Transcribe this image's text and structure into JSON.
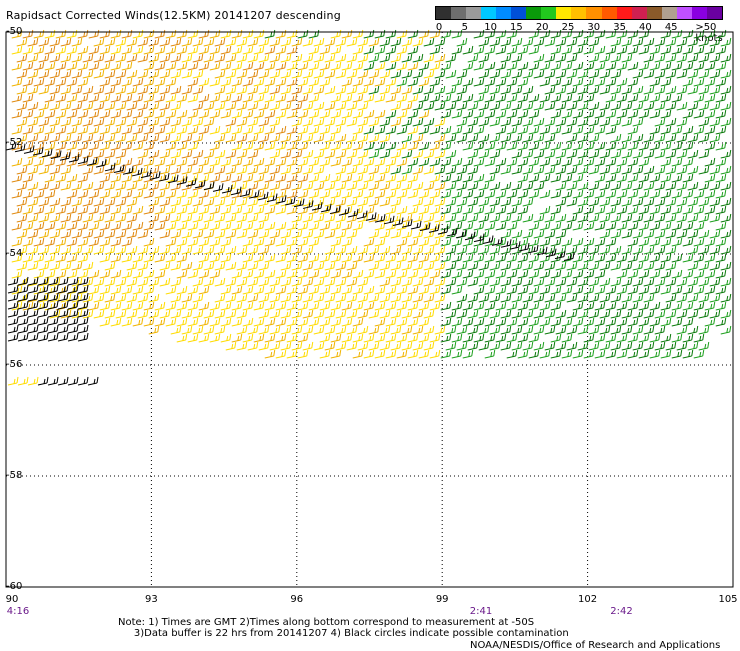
{
  "title": "Rapidsact Corrected Winds(12.5KM) 20141207 descending",
  "legend": {
    "labels": [
      "0",
      "5",
      "10",
      "15",
      "20",
      "25",
      "30",
      "35",
      "40",
      "45",
      ">50 knots"
    ],
    "colors": [
      "#303030",
      "#6e6e6e",
      "#9a9a9a",
      "#00c8ff",
      "#008cff",
      "#0050d8",
      "#0a9a0a",
      "#22c81e",
      "#ffe800",
      "#ffc000",
      "#ff9000",
      "#ff5a00",
      "#ff1a1a",
      "#d02050",
      "#8a5a2a",
      "#b0a090",
      "#c050ff",
      "#8a00e0",
      "#6a00a0"
    ]
  },
  "axes": {
    "lat_labels": [
      "-50",
      "-52",
      "-54",
      "-56",
      "-58",
      "-60"
    ],
    "lon_labels": [
      "90",
      "93",
      "96",
      "99",
      "102",
      "105"
    ],
    "time_labels": [
      {
        "text": "4:16",
        "lon": 90
      },
      {
        "text": "2:41",
        "lon": 99.8
      },
      {
        "text": "2:42",
        "lon": 102.7
      }
    ]
  },
  "note": "Note: 1) Times are GMT 2)Times along bottom correspond to measurement at -50S\n     3)Data buffer is 22 hrs from 20141207 4) Black circles indicate possible contamination",
  "credit": "NOAA/NESDIS/Office of Research and Applications",
  "wind_colors": {
    "yellow": "#ffdc00",
    "orange_light": "#f0b400",
    "orange": "#e08a10",
    "green_dark": "#0a7a0a",
    "green": "#1ea01e",
    "black": "#000000"
  }
}
